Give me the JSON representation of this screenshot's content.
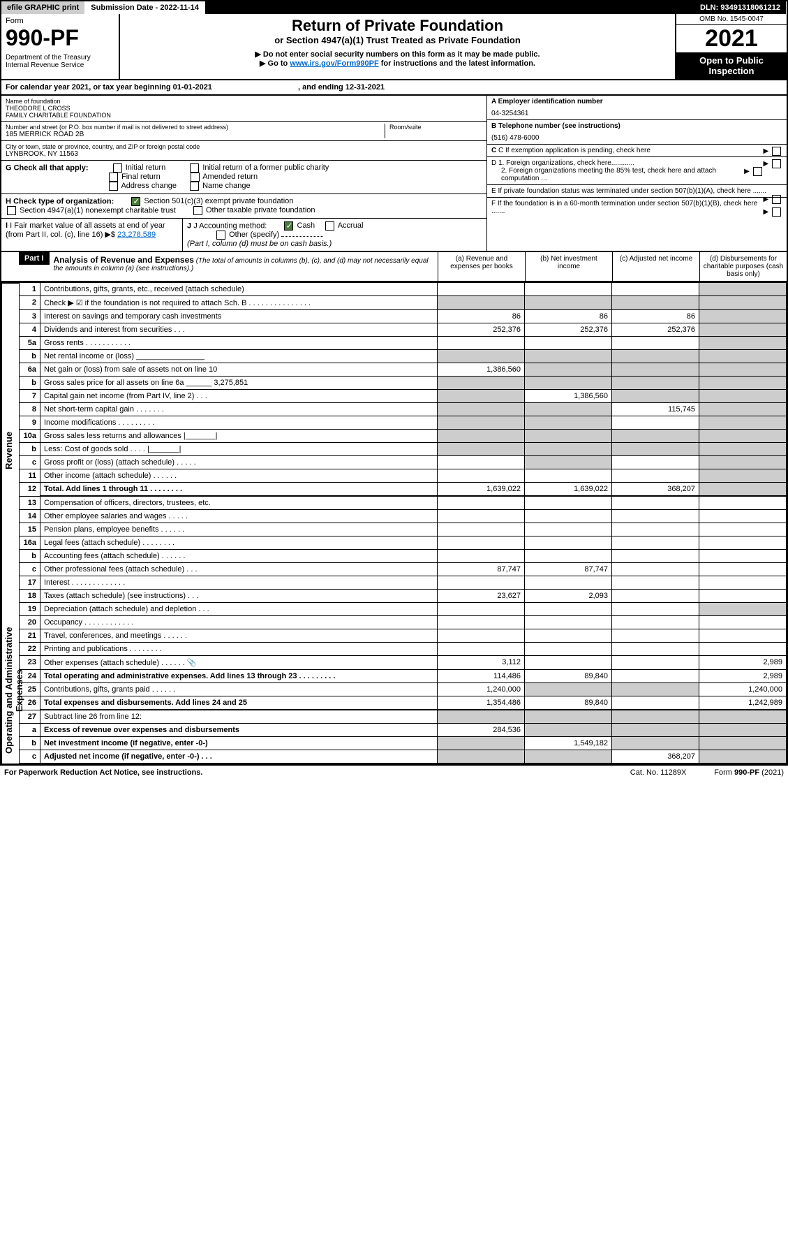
{
  "topbar": {
    "efile": "efile GRAPHIC print",
    "submission_label": "Submission Date - 2022-11-14",
    "dln": "DLN: 93491318061212"
  },
  "header": {
    "form_label": "Form",
    "form_number": "990-PF",
    "dept": "Department of the Treasury",
    "irs": "Internal Revenue Service",
    "title": "Return of Private Foundation",
    "subtitle": "or Section 4947(a)(1) Trust Treated as Private Foundation",
    "instr1": "▶ Do not enter social security numbers on this form as it may be made public.",
    "instr2_pre": "▶ Go to ",
    "instr2_link": "www.irs.gov/Form990PF",
    "instr2_post": " for instructions and the latest information.",
    "omb": "OMB No. 1545-0047",
    "year": "2021",
    "open": "Open to Public Inspection"
  },
  "calyear": {
    "text_pre": "For calendar year 2021, or tax year beginning ",
    "begin": "01-01-2021",
    "mid": " , and ending ",
    "end": "12-31-2021"
  },
  "entity": {
    "name_label": "Name of foundation",
    "name": "THEODORE L CROSS\nFAMILY CHARITABLE FOUNDATION",
    "street_label": "Number and street (or P.O. box number if mail is not delivered to street address)",
    "street": "185 MERRICK ROAD 2B",
    "room_label": "Room/suite",
    "city_label": "City or town, state or province, country, and ZIP or foreign postal code",
    "city": "LYNBROOK, NY  11563",
    "ein_label": "A Employer identification number",
    "ein": "04-3254361",
    "phone_label": "B Telephone number (see instructions)",
    "phone": "(516) 478-6000",
    "c_label": "C If exemption application is pending, check here",
    "d1": "D 1. Foreign organizations, check here............",
    "d2": "2. Foreign organizations meeting the 85% test, check here and attach computation ...",
    "e": "E  If private foundation status was terminated under section 507(b)(1)(A), check here .......",
    "f": "F  If the foundation is in a 60-month termination under section 507(b)(1)(B), check here .......",
    "g_label": "G Check all that apply:",
    "g_opts": [
      "Initial return",
      "Initial return of a former public charity",
      "Final return",
      "Amended return",
      "Address change",
      "Name change"
    ],
    "h_label": "H Check type of organization:",
    "h_opts": [
      "Section 501(c)(3) exempt private foundation",
      "Section 4947(a)(1) nonexempt charitable trust",
      "Other taxable private foundation"
    ],
    "i_label": "I Fair market value of all assets at end of year (from Part II, col. (c), line 16)",
    "i_value": "23,278,589",
    "j_label": "J Accounting method:",
    "j_cash": "Cash",
    "j_accrual": "Accrual",
    "j_other": "Other (specify)",
    "j_note": "(Part I, column (d) must be on cash basis.)"
  },
  "part1": {
    "label": "Part I",
    "title": "Analysis of Revenue and Expenses",
    "note": "(The total of amounts in columns (b), (c), and (d) may not necessarily equal the amounts in column (a) (see instructions).)",
    "cols": {
      "a": "(a) Revenue and expenses per books",
      "b": "(b) Net investment income",
      "c": "(c) Adjusted net income",
      "d": "(d) Disbursements for charitable purposes (cash basis only)"
    }
  },
  "sidelabels": {
    "revenue": "Revenue",
    "expenses": "Operating and Administrative Expenses"
  },
  "rows": [
    {
      "n": "1",
      "desc": "Contributions, gifts, grants, etc., received (attach schedule)",
      "a": "",
      "b": "",
      "c": "",
      "d": "",
      "d_shade": true
    },
    {
      "n": "2",
      "desc": "Check ▶ ☑ if the foundation is not required to attach Sch. B   .  .  .  .  .  .  .  .  .  .  .  .  .  .  .",
      "a": "",
      "b": "",
      "c": "",
      "d": "",
      "a_shade": true,
      "b_shade": true,
      "c_shade": true,
      "d_shade": true
    },
    {
      "n": "3",
      "desc": "Interest on savings and temporary cash investments",
      "a": "86",
      "b": "86",
      "c": "86",
      "d": "",
      "d_shade": true
    },
    {
      "n": "4",
      "desc": "Dividends and interest from securities   .   .   .",
      "a": "252,376",
      "b": "252,376",
      "c": "252,376",
      "d": "",
      "d_shade": true
    },
    {
      "n": "5a",
      "desc": "Gross rents   .   .   .   .   .   .   .   .   .   .   .",
      "a": "",
      "b": "",
      "c": "",
      "d": "",
      "d_shade": true
    },
    {
      "n": "b",
      "desc": "Net rental income or (loss)  ________________",
      "a": "",
      "b": "",
      "c": "",
      "d": "",
      "a_shade": true,
      "b_shade": true,
      "c_shade": true,
      "d_shade": true
    },
    {
      "n": "6a",
      "desc": "Net gain or (loss) from sale of assets not on line 10",
      "a": "1,386,560",
      "b": "",
      "c": "",
      "d": "",
      "b_shade": true,
      "c_shade": true,
      "d_shade": true
    },
    {
      "n": "b",
      "desc": "Gross sales price for all assets on line 6a ______ 3,275,851",
      "a": "",
      "b": "",
      "c": "",
      "d": "",
      "a_shade": true,
      "b_shade": true,
      "c_shade": true,
      "d_shade": true
    },
    {
      "n": "7",
      "desc": "Capital gain net income (from Part IV, line 2)   .   .   .",
      "a": "",
      "b": "1,386,560",
      "c": "",
      "d": "",
      "a_shade": true,
      "c_shade": true,
      "d_shade": true
    },
    {
      "n": "8",
      "desc": "Net short-term capital gain   .   .   .   .   .   .   .",
      "a": "",
      "b": "",
      "c": "115,745",
      "d": "",
      "a_shade": true,
      "b_shade": true,
      "d_shade": true
    },
    {
      "n": "9",
      "desc": "Income modifications   .   .   .   .   .   .   .   .   .",
      "a": "",
      "b": "",
      "c": "",
      "d": "",
      "a_shade": true,
      "b_shade": true,
      "d_shade": true
    },
    {
      "n": "10a",
      "desc": "Gross sales less returns and allowances  |_______|",
      "a": "",
      "b": "",
      "c": "",
      "d": "",
      "a_shade": true,
      "b_shade": true,
      "c_shade": true,
      "d_shade": true
    },
    {
      "n": "b",
      "desc": "Less: Cost of goods sold   .   .   .   .  |_______|",
      "a": "",
      "b": "",
      "c": "",
      "d": "",
      "a_shade": true,
      "b_shade": true,
      "c_shade": true,
      "d_shade": true
    },
    {
      "n": "c",
      "desc": "Gross profit or (loss) (attach schedule)   .   .   .   .   .",
      "a": "",
      "b": "",
      "c": "",
      "d": "",
      "b_shade": true,
      "d_shade": true
    },
    {
      "n": "11",
      "desc": "Other income (attach schedule)   .   .   .   .   .   .",
      "a": "",
      "b": "",
      "c": "",
      "d": "",
      "d_shade": true
    },
    {
      "n": "12",
      "desc": "Total. Add lines 1 through 11   .   .   .   .   .   .   .   .",
      "a": "1,639,022",
      "b": "1,639,022",
      "c": "368,207",
      "d": "",
      "bold": true,
      "d_shade": true
    },
    {
      "n": "13",
      "desc": "Compensation of officers, directors, trustees, etc.",
      "a": "",
      "b": "",
      "c": "",
      "d": ""
    },
    {
      "n": "14",
      "desc": "Other employee salaries and wages   .   .   .   .   .",
      "a": "",
      "b": "",
      "c": "",
      "d": ""
    },
    {
      "n": "15",
      "desc": "Pension plans, employee benefits   .   .   .   .   .   .",
      "a": "",
      "b": "",
      "c": "",
      "d": ""
    },
    {
      "n": "16a",
      "desc": "Legal fees (attach schedule)   .   .   .   .   .   .   .   .",
      "a": "",
      "b": "",
      "c": "",
      "d": ""
    },
    {
      "n": "b",
      "desc": "Accounting fees (attach schedule)   .   .   .   .   .   .",
      "a": "",
      "b": "",
      "c": "",
      "d": ""
    },
    {
      "n": "c",
      "desc": "Other professional fees (attach schedule)   .   .   .",
      "a": "87,747",
      "b": "87,747",
      "c": "",
      "d": ""
    },
    {
      "n": "17",
      "desc": "Interest   .   .   .   .   .   .   .   .   .   .   .   .   .",
      "a": "",
      "b": "",
      "c": "",
      "d": ""
    },
    {
      "n": "18",
      "desc": "Taxes (attach schedule) (see instructions)   .   .   .",
      "a": "23,627",
      "b": "2,093",
      "c": "",
      "d": ""
    },
    {
      "n": "19",
      "desc": "Depreciation (attach schedule) and depletion   .   .   .",
      "a": "",
      "b": "",
      "c": "",
      "d": "",
      "d_shade": true
    },
    {
      "n": "20",
      "desc": "Occupancy   .   .   .   .   .   .   .   .   .   .   .   .",
      "a": "",
      "b": "",
      "c": "",
      "d": ""
    },
    {
      "n": "21",
      "desc": "Travel, conferences, and meetings   .   .   .   .   .   .",
      "a": "",
      "b": "",
      "c": "",
      "d": ""
    },
    {
      "n": "22",
      "desc": "Printing and publications   .   .   .   .   .   .   .   .",
      "a": "",
      "b": "",
      "c": "",
      "d": ""
    },
    {
      "n": "23",
      "desc": "Other expenses (attach schedule)   .   .   .   .   .   .   📎",
      "a": "3,112",
      "b": "",
      "c": "",
      "d": "2,989"
    },
    {
      "n": "24",
      "desc": "Total operating and administrative expenses. Add lines 13 through 23   .   .   .   .   .   .   .   .   .",
      "a": "114,486",
      "b": "89,840",
      "c": "",
      "d": "2,989",
      "bold": true
    },
    {
      "n": "25",
      "desc": "Contributions, gifts, grants paid   .   .   .   .   .   .",
      "a": "1,240,000",
      "b": "",
      "c": "",
      "d": "1,240,000",
      "b_shade": true,
      "c_shade": true
    },
    {
      "n": "26",
      "desc": "Total expenses and disbursements. Add lines 24 and 25",
      "a": "1,354,486",
      "b": "89,840",
      "c": "",
      "d": "1,242,989",
      "bold": true
    },
    {
      "n": "27",
      "desc": "Subtract line 26 from line 12:",
      "a": "",
      "b": "",
      "c": "",
      "d": "",
      "a_shade": true,
      "b_shade": true,
      "c_shade": true,
      "d_shade": true
    },
    {
      "n": "a",
      "desc": "Excess of revenue over expenses and disbursements",
      "a": "284,536",
      "b": "",
      "c": "",
      "d": "",
      "bold": true,
      "b_shade": true,
      "c_shade": true,
      "d_shade": true
    },
    {
      "n": "b",
      "desc": "Net investment income (if negative, enter -0-)",
      "a": "",
      "b": "1,549,182",
      "c": "",
      "d": "",
      "bold": true,
      "a_shade": true,
      "c_shade": true,
      "d_shade": true
    },
    {
      "n": "c",
      "desc": "Adjusted net income (if negative, enter -0-)   .   .   .",
      "a": "",
      "b": "",
      "c": "368,207",
      "d": "",
      "bold": true,
      "a_shade": true,
      "b_shade": true,
      "d_shade": true
    }
  ],
  "footer": {
    "left": "For Paperwork Reduction Act Notice, see instructions.",
    "mid": "Cat. No. 11289X",
    "right": "Form 990-PF (2021)"
  }
}
